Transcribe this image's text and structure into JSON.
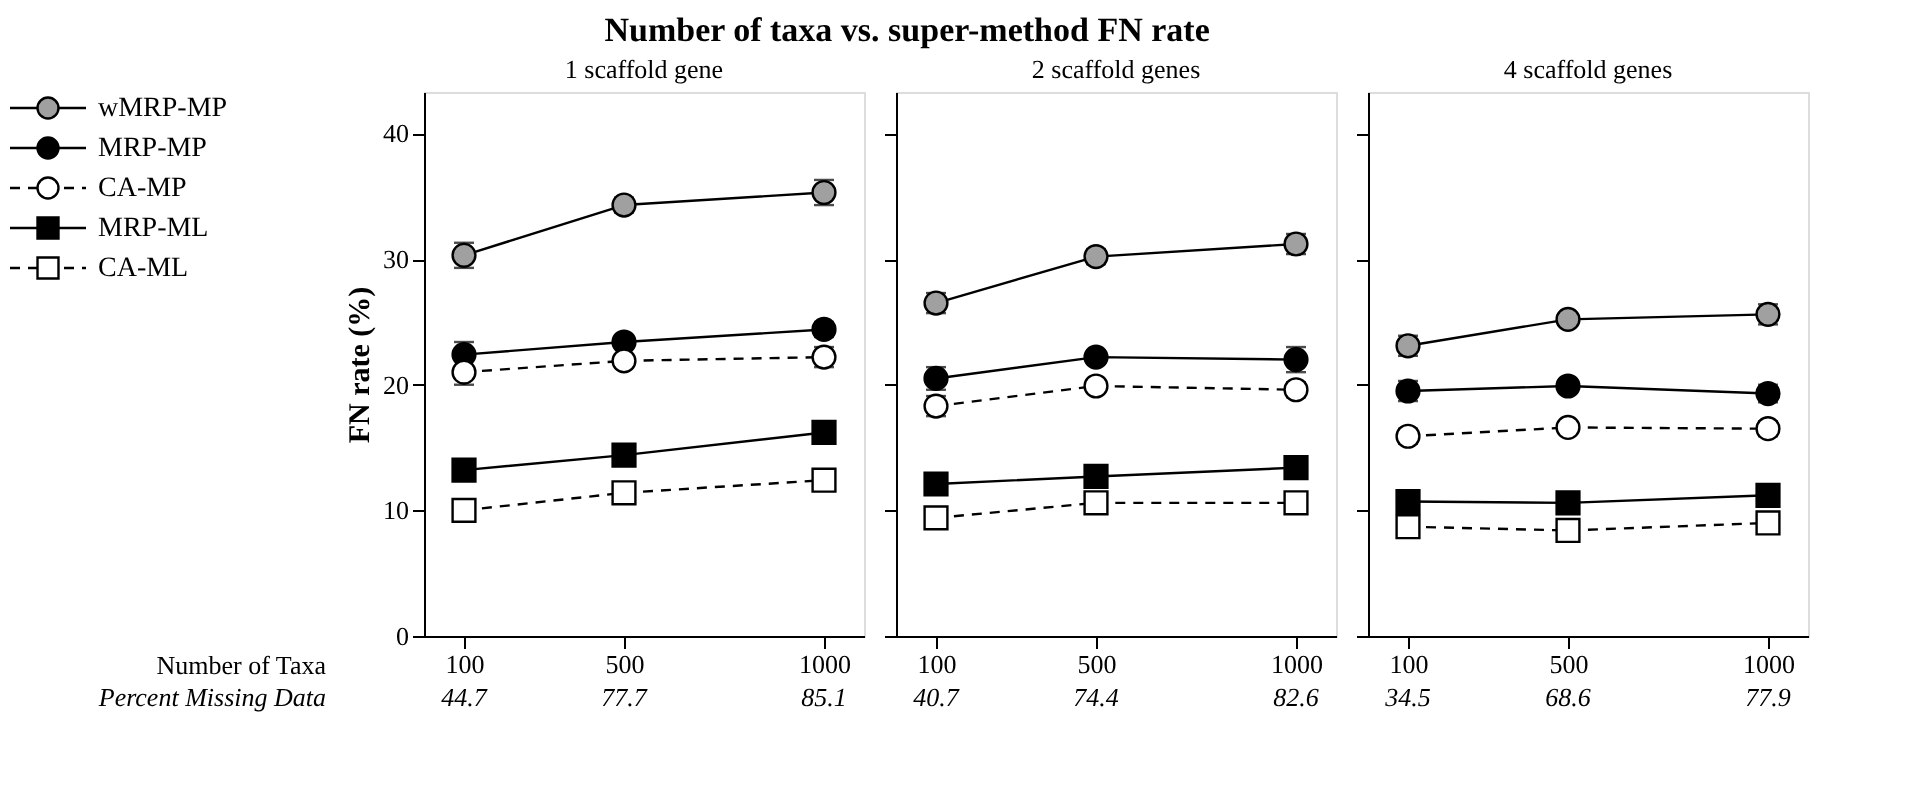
{
  "chart_data": [
    {
      "type": "line",
      "title": "Number of taxa vs. super-method FN rate",
      "subtitle": "1 scaffold gene",
      "ylabel": "FN rate (%)",
      "legend": "left",
      "grid": false,
      "annotations": [
        "Number of Taxa",
        "Percent Missing Data",
        "44.7",
        "77.7",
        "85.1"
      ],
      "x": [
        100,
        500,
        1000
      ],
      "xlim": [
        0,
        1100
      ],
      "xticks": [
        100,
        500,
        1000
      ],
      "ylim": [
        0,
        43.3
      ],
      "yticks": [
        0,
        10,
        20,
        30,
        40
      ],
      "series": [
        {
          "name": "wMRP-MP",
          "color": "#a0a0a0",
          "marker": "circle",
          "line_style": "solid",
          "values": [
            30.3,
            34.3,
            35.3
          ],
          "errors": [
            1.0,
            0.6,
            1.0
          ]
        },
        {
          "name": "MRP-MP",
          "color": "#000000",
          "marker": "circle",
          "line_style": "solid",
          "values": [
            22.4,
            23.4,
            24.4
          ],
          "errors": [
            1.0,
            0.5,
            0.6
          ]
        },
        {
          "name": "CA-MP",
          "color": "#ffffff",
          "marker": "circle",
          "line_style": "dashed",
          "values": [
            21.0,
            21.9,
            22.2
          ],
          "errors": [
            1.0,
            0.5,
            0.8
          ]
        },
        {
          "name": "MRP-ML",
          "color": "#000000",
          "marker": "square",
          "line_style": "solid",
          "values": [
            13.2,
            14.4,
            16.2
          ]
        },
        {
          "name": "CA-ML",
          "color": "#ffffff",
          "marker": "square",
          "line_style": "dashed",
          "values": [
            10.0,
            11.4,
            12.4
          ]
        }
      ]
    },
    {
      "type": "line",
      "subtitle": "2 scaffold genes",
      "grid": false,
      "tick_labels": "x",
      "annotations": [
        "40.7",
        "74.4",
        "82.6"
      ],
      "x": [
        100,
        500,
        1000
      ],
      "xlim": [
        0,
        1100
      ],
      "xticks": [
        100,
        500,
        1000
      ],
      "ylim": [
        0,
        43.3
      ],
      "yticks": [
        0,
        10,
        20,
        30,
        40
      ],
      "series": [
        {
          "color": "#a0a0a0",
          "marker": "circle",
          "line_style": "solid",
          "values": [
            26.5,
            30.2,
            31.2
          ],
          "errors": [
            0.8,
            0.6,
            0.8
          ]
        },
        {
          "color": "#000000",
          "marker": "circle",
          "line_style": "solid",
          "values": [
            20.5,
            22.2,
            22.0
          ],
          "errors": [
            0.9,
            0.5,
            1.0
          ]
        },
        {
          "color": "#ffffff",
          "marker": "circle",
          "line_style": "dashed",
          "values": [
            18.3,
            19.9,
            19.6
          ],
          "errors": [
            0.8,
            0.4,
            0.6
          ]
        },
        {
          "color": "#000000",
          "marker": "square",
          "line_style": "solid",
          "values": [
            12.1,
            12.7,
            13.4
          ]
        },
        {
          "color": "#ffffff",
          "marker": "square",
          "line_style": "dashed",
          "values": [
            9.4,
            10.6,
            10.6
          ]
        }
      ]
    },
    {
      "type": "line",
      "subtitle": "4 scaffold genes",
      "grid": false,
      "tick_labels": "x",
      "annotations": [
        "34.5",
        "68.6",
        "77.9"
      ],
      "x": [
        100,
        500,
        1000
      ],
      "xlim": [
        0,
        1100
      ],
      "xticks": [
        100,
        500,
        1000
      ],
      "ylim": [
        0,
        43.3
      ],
      "yticks": [
        0,
        10,
        20,
        30,
        40
      ],
      "series": [
        {
          "color": "#a0a0a0",
          "marker": "circle",
          "line_style": "solid",
          "values": [
            23.1,
            25.2,
            25.6
          ],
          "errors": [
            0.8,
            0.5,
            0.8
          ]
        },
        {
          "color": "#000000",
          "marker": "circle",
          "line_style": "solid",
          "values": [
            19.5,
            19.9,
            19.3
          ],
          "errors": [
            0.8,
            0.5,
            0.7
          ]
        },
        {
          "color": "#ffffff",
          "marker": "circle",
          "line_style": "dashed",
          "values": [
            15.9,
            16.6,
            16.5
          ],
          "errors": [
            0.6,
            0.4,
            0.6
          ]
        },
        {
          "color": "#000000",
          "marker": "square",
          "line_style": "solid",
          "values": [
            10.7,
            10.6,
            11.2
          ]
        },
        {
          "color": "#ffffff",
          "marker": "square",
          "line_style": "dashed",
          "values": [
            8.7,
            8.4,
            9.0
          ]
        }
      ]
    }
  ]
}
